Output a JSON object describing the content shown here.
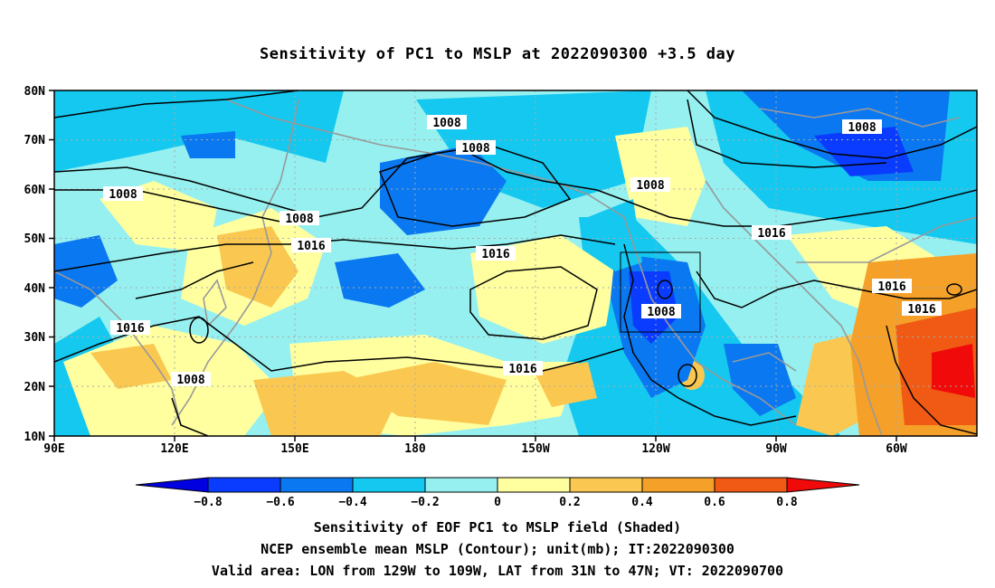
{
  "title": "Sensitivity of PC1 to MSLP at 2022090300 +3.5 day",
  "map": {
    "lat_labels": [
      "80N",
      "70N",
      "60N",
      "50N",
      "40N",
      "30N",
      "20N",
      "10N"
    ],
    "lon_labels": [
      "90E",
      "120E",
      "150E",
      "180",
      "150W",
      "120W",
      "90W",
      "60W"
    ],
    "valid_box": {
      "lon_from": "129W",
      "lon_to": "109W",
      "lat_from": "31N",
      "lat_to": "47N"
    },
    "contour_labels": [
      "1008",
      "1008",
      "1008",
      "1008",
      "1008",
      "1008",
      "1008",
      "1016",
      "1016",
      "1016",
      "1016",
      "1016",
      "1016"
    ]
  },
  "colorbar": {
    "labels": [
      "−0.8",
      "−0.6",
      "−0.4",
      "−0.2",
      "0",
      "0.2",
      "0.4",
      "0.6",
      "0.8"
    ],
    "colors": [
      "#0000e0",
      "#0a3cff",
      "#0a78f0",
      "#14c8f0",
      "#96f0f0",
      "#ffffa0",
      "#fac850",
      "#f5a028",
      "#f05a14",
      "#f00a0a"
    ]
  },
  "captions": [
    "Sensitivity of EOF PC1 to MSLP field (Shaded)",
    "NCEP ensemble mean MSLP (Contour); unit(mb); IT:2022090300",
    "Valid area: LON from 129W to 109W, LAT from 31N to 47N; VT: 2022090700"
  ]
}
